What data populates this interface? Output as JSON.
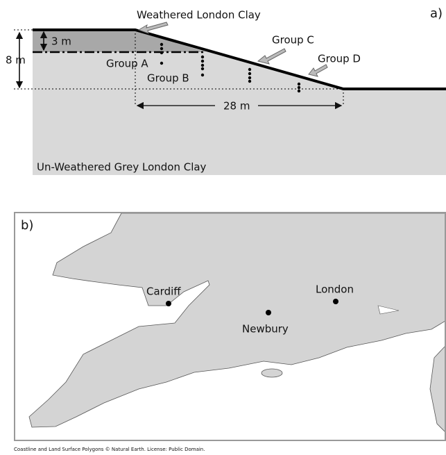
{
  "panel_a": {
    "tag": "a)",
    "layer_label": "Weathered London Clay",
    "depth_weathered": "3 m",
    "depth_total": "8 m",
    "width": "28 m",
    "groups": [
      "Group A",
      "Group B",
      "Group C",
      "Group D"
    ],
    "base_label": "Un-Weathered Grey London Clay"
  },
  "panel_b": {
    "tag": "b)",
    "places": [
      "Cardiff",
      "London",
      "Newbury"
    ]
  },
  "caption": "Coastline and Land Surface Polygons © Natural Earth. License: Public Domain."
}
